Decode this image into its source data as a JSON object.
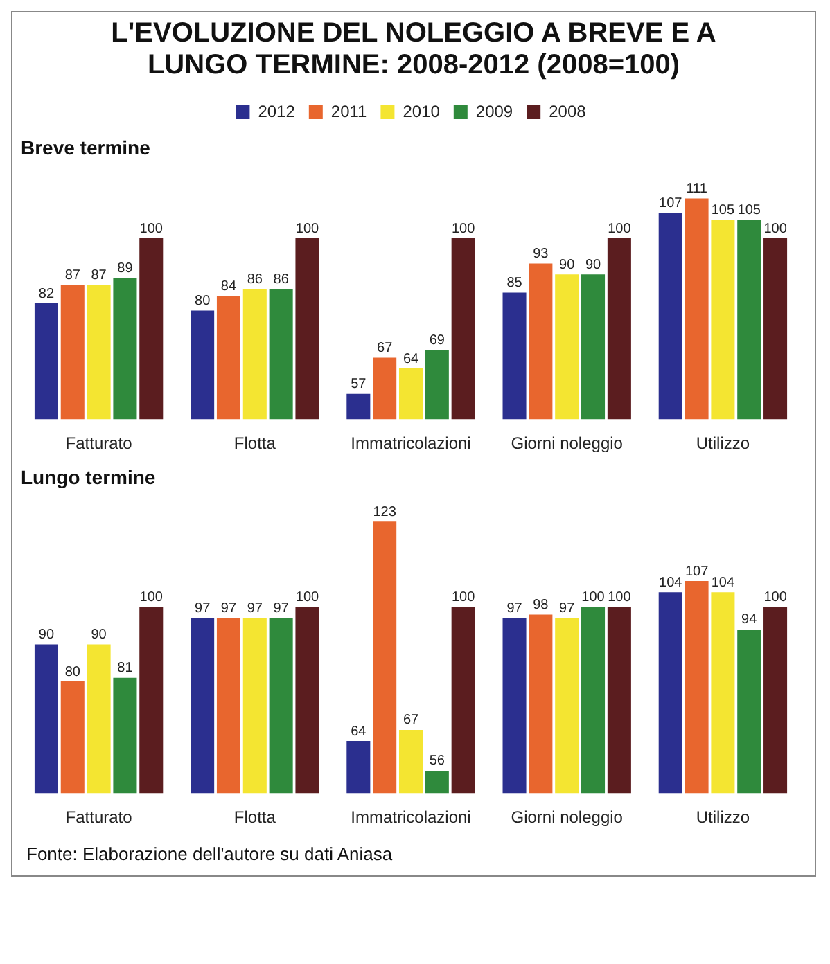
{
  "chart_data": [
    {
      "type": "bar",
      "title": "L'EVOLUZIONE DEL NOLEGGIO A BREVE E A LUNGO TERMINE: 2008-2012 (2008=100)",
      "subtitle": "Breve termine",
      "categories": [
        "Fatturato",
        "Flotta",
        "Immatricolazioni",
        "Giorni noleggio",
        "Utilizzo"
      ],
      "series": [
        {
          "name": "2012",
          "color": "#2b2f8f",
          "values": [
            82,
            80,
            57,
            85,
            107
          ]
        },
        {
          "name": "2011",
          "color": "#e8662e",
          "values": [
            87,
            84,
            67,
            93,
            111
          ]
        },
        {
          "name": "2010",
          "color": "#f4e531",
          "values": [
            87,
            86,
            64,
            90,
            105
          ]
        },
        {
          "name": "2009",
          "color": "#2f8a3c",
          "values": [
            89,
            86,
            69,
            90,
            105
          ]
        },
        {
          "name": "2008",
          "color": "#5b1d1f",
          "values": [
            100,
            100,
            100,
            100,
            100
          ]
        }
      ],
      "tick_labels": "x",
      "legend": "top",
      "data_labels": true
    },
    {
      "type": "bar",
      "subtitle": "Lungo termine",
      "categories": [
        "Fatturato",
        "Flotta",
        "Immatricolazioni",
        "Giorni noleggio",
        "Utilizzo"
      ],
      "series": [
        {
          "color": "#2b2f8f",
          "values": [
            90,
            97,
            64,
            97,
            104
          ]
        },
        {
          "color": "#e8662e",
          "values": [
            80,
            97,
            123,
            98,
            107
          ]
        },
        {
          "color": "#f4e531",
          "values": [
            90,
            97,
            67,
            97,
            104
          ]
        },
        {
          "color": "#2f8a3c",
          "values": [
            81,
            97,
            56,
            100,
            94
          ]
        },
        {
          "color": "#5b1d1f",
          "values": [
            100,
            100,
            100,
            100,
            100
          ]
        }
      ],
      "tick_labels": "x",
      "data_labels": true,
      "annotations": [
        "Fonte: Elaborazione dell'autore su dati Aniasa"
      ]
    }
  ]
}
